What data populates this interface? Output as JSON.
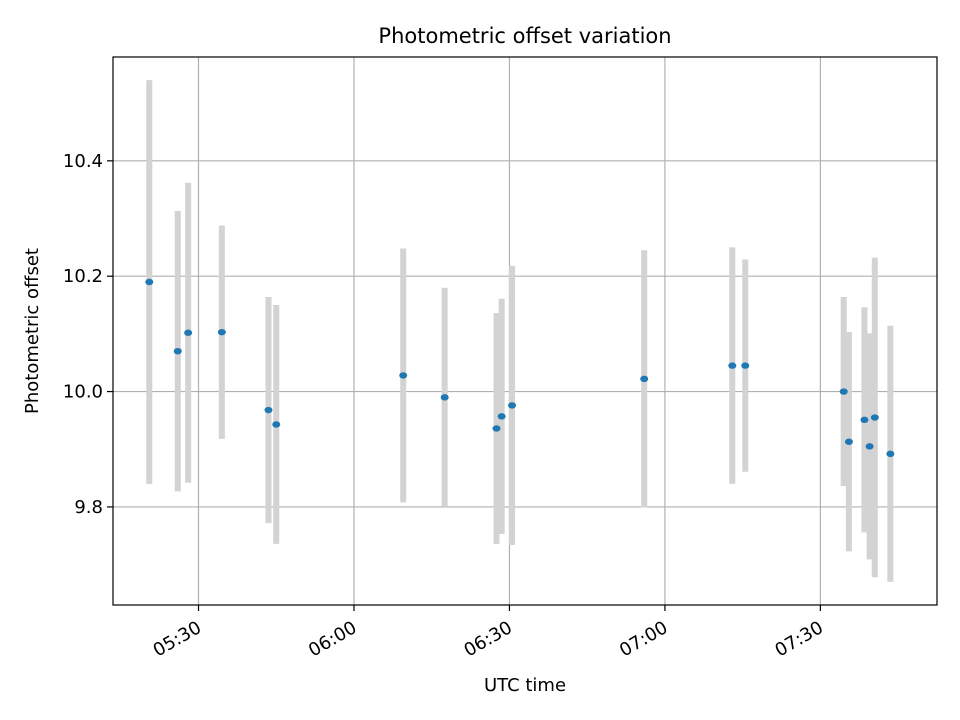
{
  "chart_data": {
    "type": "scatter",
    "title": "Photometric offset variation",
    "xlabel": "UTC time",
    "ylabel": "Photometric offset",
    "x_ticks": [
      "05:30",
      "06:00",
      "06:30",
      "07:00",
      "07:30"
    ],
    "y_ticks": [
      "9.8",
      "10.0",
      "10.2",
      "10.4"
    ],
    "xlim": [
      "05:13:30",
      "07:52:30"
    ],
    "ylim": [
      9.63,
      10.58
    ],
    "grid": true,
    "marker_color": "#1f77b4",
    "errorbar_color": "#d3d3d3",
    "points": [
      {
        "x": "05:20:30",
        "y": 10.19,
        "err": 0.35
      },
      {
        "x": "05:26:00",
        "y": 10.07,
        "err": 0.243
      },
      {
        "x": "05:28:00",
        "y": 10.102,
        "err": 0.26
      },
      {
        "x": "05:34:30",
        "y": 10.103,
        "err": 0.185
      },
      {
        "x": "05:43:30",
        "y": 9.968,
        "err": 0.196
      },
      {
        "x": "05:45:00",
        "y": 9.943,
        "err": 0.207
      },
      {
        "x": "06:09:30",
        "y": 10.028,
        "err": 0.22
      },
      {
        "x": "06:17:30",
        "y": 9.99,
        "err": 0.19
      },
      {
        "x": "06:27:30",
        "y": 9.936,
        "err": 0.2
      },
      {
        "x": "06:28:30",
        "y": 9.957,
        "err": 0.204
      },
      {
        "x": "06:30:30",
        "y": 9.976,
        "err": 0.242
      },
      {
        "x": "06:56:00",
        "y": 10.022,
        "err": 0.223
      },
      {
        "x": "07:13:00",
        "y": 10.045,
        "err": 0.205
      },
      {
        "x": "07:15:30",
        "y": 10.045,
        "err": 0.184
      },
      {
        "x": "07:34:30",
        "y": 10.0,
        "err": 0.164
      },
      {
        "x": "07:35:30",
        "y": 9.913,
        "err": 0.19
      },
      {
        "x": "07:38:30",
        "y": 9.951,
        "err": 0.195
      },
      {
        "x": "07:39:30",
        "y": 9.905,
        "err": 0.196
      },
      {
        "x": "07:40:30",
        "y": 9.955,
        "err": 0.277
      },
      {
        "x": "07:43:30",
        "y": 9.892,
        "err": 0.222
      }
    ]
  }
}
